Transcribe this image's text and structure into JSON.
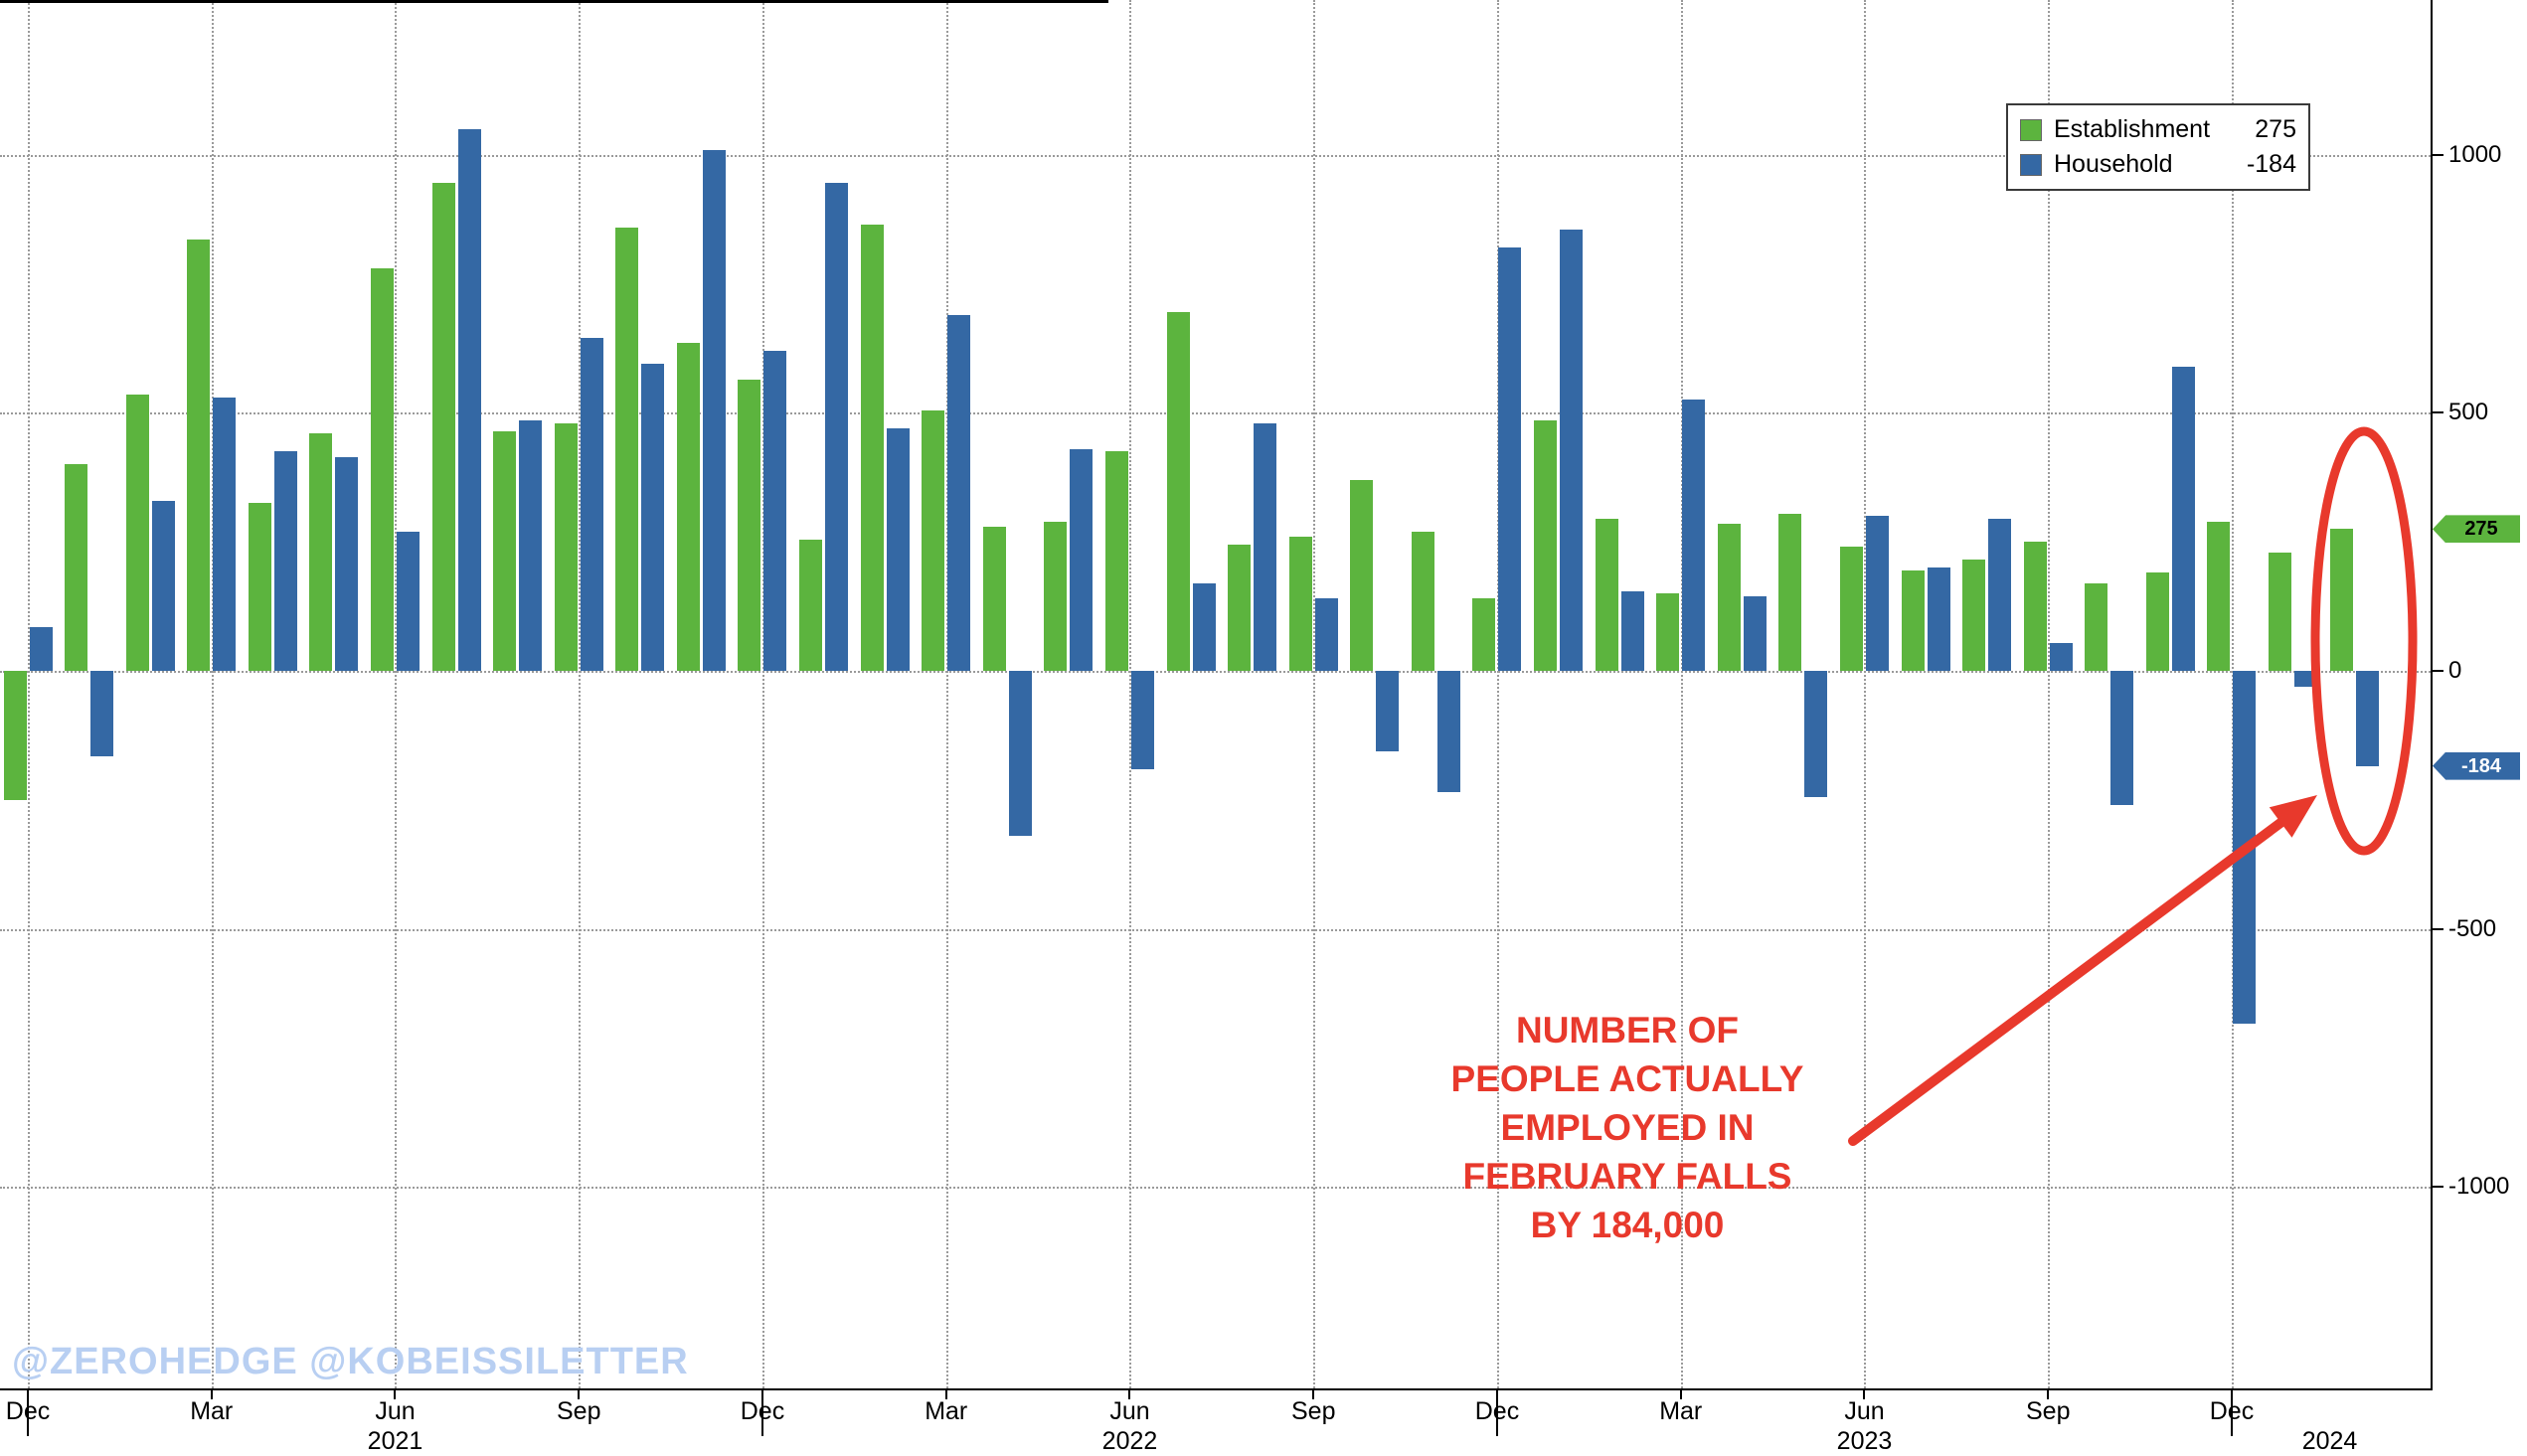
{
  "watermark": "@ZEROHEDGE @KOBEISSILETTER",
  "colors": {
    "establishment": "#5cb43e",
    "household": "#3468a4",
    "annotation": "#e8392c",
    "watermark": "#b8cff2",
    "axis": "#000000",
    "grid": "#9a9a9a",
    "background": "#ffffff"
  },
  "legend": {
    "items": [
      {
        "name": "Establishment",
        "value": "275",
        "color_key": "establishment"
      },
      {
        "name": "Household",
        "value": "-184",
        "color_key": "household"
      }
    ]
  },
  "annotation": {
    "lines": [
      "NUMBER OF",
      "PEOPLE ACTUALLY",
      "EMPLOYED IN",
      "FEBRUARY FALLS",
      "BY 184,000"
    ]
  },
  "axis_badges": [
    {
      "label": "275",
      "value": 275,
      "color_key": "establishment",
      "text_color": "#000000"
    },
    {
      "label": "-184",
      "value": -184,
      "color_key": "household",
      "text_color": "#ffffff"
    }
  ],
  "chart_data": {
    "type": "bar",
    "title": "",
    "x": [
      "Dec 2020",
      "Jan 2021",
      "Feb 2021",
      "Mar 2021",
      "Apr 2021",
      "May 2021",
      "Jun 2021",
      "Jul 2021",
      "Aug 2021",
      "Sep 2021",
      "Oct 2021",
      "Nov 2021",
      "Dec 2021",
      "Jan 2022",
      "Feb 2022",
      "Mar 2022",
      "Apr 2022",
      "May 2022",
      "Jun 2022",
      "Jul 2022",
      "Aug 2022",
      "Sep 2022",
      "Oct 2022",
      "Nov 2022",
      "Dec 2022",
      "Jan 2023",
      "Feb 2023",
      "Mar 2023",
      "Apr 2023",
      "May 2023",
      "Jun 2023",
      "Jul 2023",
      "Aug 2023",
      "Sep 2023",
      "Oct 2023",
      "Nov 2023",
      "Dec 2023",
      "Jan 2024",
      "Feb 2024"
    ],
    "series": [
      {
        "name": "Establishment",
        "values": [
          -250,
          400,
          535,
          835,
          325,
          460,
          780,
          945,
          465,
          480,
          860,
          635,
          565,
          255,
          865,
          505,
          280,
          290,
          425,
          695,
          245,
          260,
          370,
          270,
          140,
          485,
          295,
          150,
          285,
          305,
          240,
          195,
          215,
          250,
          170,
          190,
          290,
          229,
          275
        ]
      },
      {
        "name": "Household",
        "values": [
          85,
          -165,
          330,
          530,
          425,
          415,
          270,
          1050,
          485,
          645,
          595,
          1010,
          620,
          945,
          470,
          690,
          -320,
          430,
          -190,
          170,
          480,
          140,
          -155,
          -235,
          820,
          855,
          155,
          525,
          145,
          -245,
          300,
          200,
          295,
          55,
          -260,
          590,
          -683,
          -31,
          -184
        ]
      }
    ],
    "ylim": [
      -1390,
      1300
    ],
    "axis": {
      "y_ticks": [
        {
          "value": 1000,
          "label": "1000"
        },
        {
          "value": 500,
          "label": "500"
        },
        {
          "value": 0,
          "label": "0"
        },
        {
          "value": -500,
          "label": "-500"
        },
        {
          "value": -1000,
          "label": "-1000"
        }
      ],
      "x_ticks": [
        {
          "index": 0,
          "label": "Dec"
        },
        {
          "index": 3,
          "label": "Mar"
        },
        {
          "index": 6,
          "label": "Jun"
        },
        {
          "index": 9,
          "label": "Sep"
        },
        {
          "index": 12,
          "label": "Dec"
        },
        {
          "index": 15,
          "label": "Mar"
        },
        {
          "index": 18,
          "label": "Jun"
        },
        {
          "index": 21,
          "label": "Sep"
        },
        {
          "index": 24,
          "label": "Dec"
        },
        {
          "index": 27,
          "label": "Mar"
        },
        {
          "index": 30,
          "label": "Jun"
        },
        {
          "index": 33,
          "label": "Sep"
        },
        {
          "index": 36,
          "label": "Dec"
        }
      ],
      "year_labels": [
        {
          "index": 6,
          "label": "2021"
        },
        {
          "index": 18,
          "label": "2022"
        },
        {
          "index": 30,
          "label": "2023"
        },
        {
          "index": 37.6,
          "label": "2024"
        }
      ],
      "year_separator_indices": [
        0,
        12,
        24,
        36
      ],
      "grid": true,
      "legend_position": "top-right"
    }
  }
}
